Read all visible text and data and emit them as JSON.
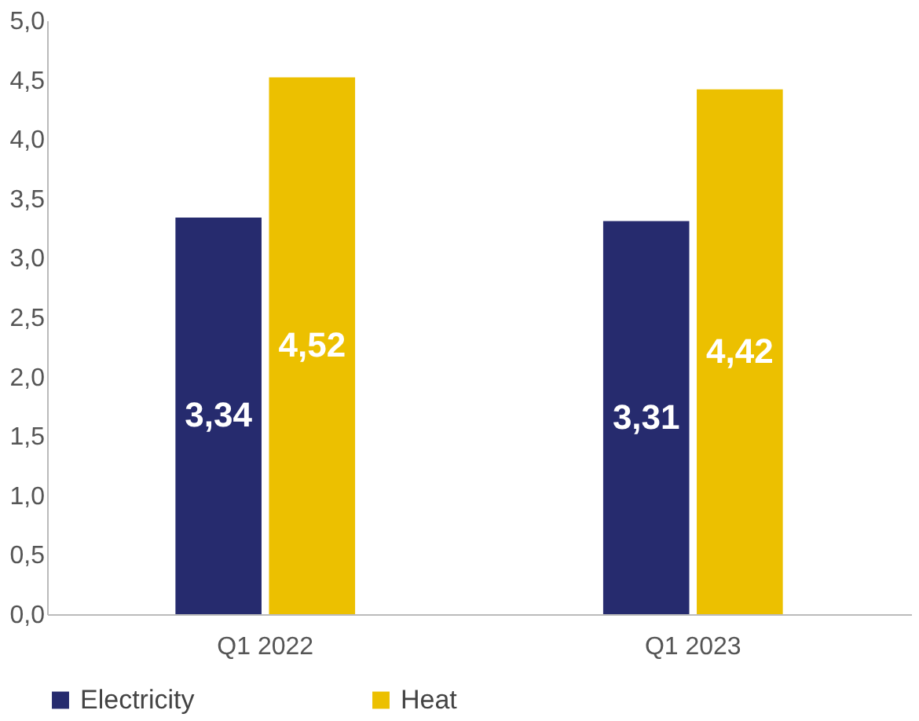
{
  "chart_data": {
    "type": "bar",
    "categories": [
      "Q1 2022",
      "Q1 2023"
    ],
    "series": [
      {
        "name": "Electricity",
        "color": "#262b6e",
        "values": [
          3.34,
          3.31
        ],
        "value_labels": [
          "3,34",
          "3,31"
        ]
      },
      {
        "name": "Heat",
        "color": "#ecc000",
        "values": [
          4.52,
          4.42
        ],
        "value_labels": [
          "4,52",
          "4,42"
        ]
      }
    ],
    "ylim": [
      0,
      5
    ],
    "yticks": [
      {
        "value": 0,
        "label": "0,0"
      },
      {
        "value": 0.5,
        "label": "0,5"
      },
      {
        "value": 1,
        "label": "1,0"
      },
      {
        "value": 1.5,
        "label": "1,5"
      },
      {
        "value": 2,
        "label": "2,0"
      },
      {
        "value": 2.5,
        "label": "2,5"
      },
      {
        "value": 3,
        "label": "3,0"
      },
      {
        "value": 3.5,
        "label": "3,5"
      },
      {
        "value": 4,
        "label": "4,0"
      },
      {
        "value": 4.5,
        "label": "4,5"
      },
      {
        "value": 5,
        "label": "5,0"
      }
    ],
    "grid": false,
    "legend": "bottom"
  }
}
